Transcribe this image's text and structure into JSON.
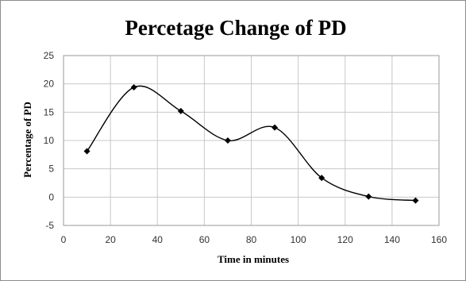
{
  "chart_data": {
    "type": "line",
    "title": "Percetage Change of PD",
    "xlabel": "Time in minutes",
    "ylabel": "Percentage of PD",
    "xlim": [
      0,
      160
    ],
    "ylim": [
      -5,
      25
    ],
    "x_ticks": [
      0,
      20,
      40,
      60,
      80,
      100,
      120,
      140,
      160
    ],
    "y_ticks": [
      -5,
      0,
      5,
      10,
      15,
      20,
      25
    ],
    "grid": true,
    "smooth": true,
    "series": [
      {
        "x": [
          10,
          30,
          50,
          70,
          90,
          110,
          130,
          150
        ],
        "values": [
          8.1,
          19.4,
          15.2,
          10.0,
          12.3,
          3.4,
          0.1,
          -0.6
        ]
      }
    ],
    "colors": {
      "line": "#000000",
      "marker": "#000000",
      "grid": "#c8c8c8"
    }
  }
}
